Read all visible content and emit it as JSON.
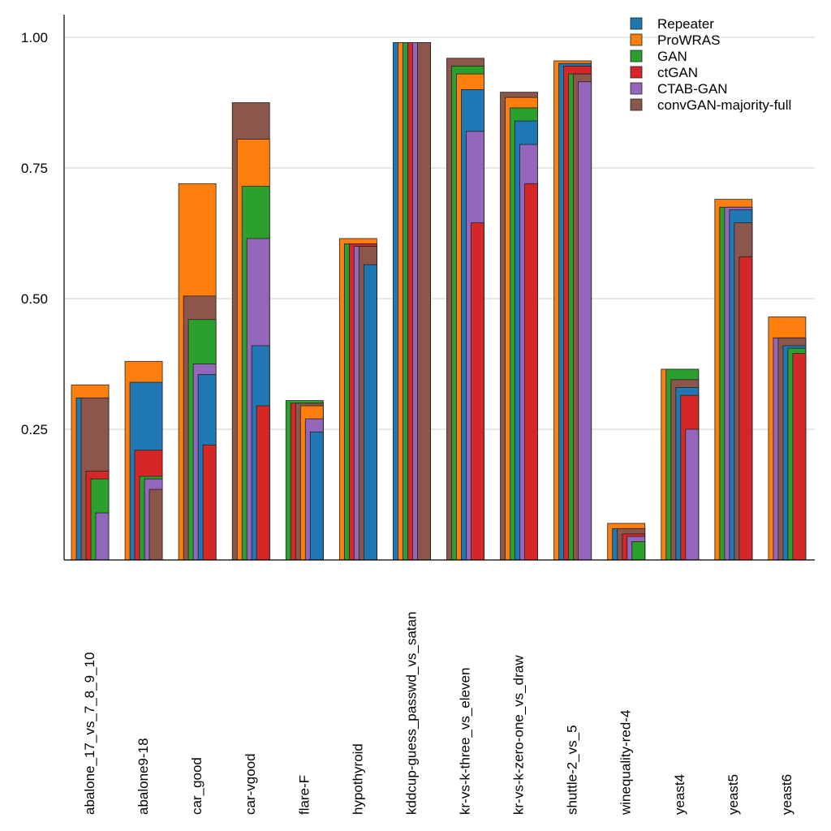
{
  "chart_data": {
    "type": "bar",
    "title": "",
    "xlabel": "",
    "ylabel": "",
    "ylim": [
      0,
      1.0
    ],
    "yticks": [
      "0.25",
      "0.50",
      "0.75",
      "1.00"
    ],
    "grid": true,
    "legend_position": "top-right",
    "categories": [
      "abalone_17_vs_7_8_9_10",
      "abalone9-18",
      "car_good",
      "car-vgood",
      "flare-F",
      "hypothyroid",
      "kddcup-guess_passwd_vs_satan",
      "kr-vs-k-three_vs_eleven",
      "kr-vs-k-zero-one_vs_draw",
      "shuttle-2_vs_5",
      "winequality-red-4",
      "yeast4",
      "yeast5",
      "yeast6"
    ],
    "series": [
      {
        "name": "Repeater",
        "color": "#1f77b4",
        "values": [
          0.31,
          0.34,
          0.355,
          0.41,
          0.245,
          0.565,
          0.99,
          0.9,
          0.84,
          0.95,
          0.06,
          0.33,
          0.67,
          0.41
        ]
      },
      {
        "name": "ProWRAS",
        "color": "#ff7f0e",
        "values": [
          0.335,
          0.38,
          0.72,
          0.805,
          0.295,
          0.615,
          0.99,
          0.93,
          0.885,
          0.955,
          0.07,
          0.365,
          0.69,
          0.465
        ]
      },
      {
        "name": "GAN",
        "color": "#2ca02c",
        "values": [
          0.155,
          0.16,
          0.46,
          0.715,
          0.305,
          0.605,
          0.99,
          0.945,
          0.865,
          0.93,
          0.035,
          0.365,
          0.675,
          0.405
        ]
      },
      {
        "name": "ctGAN",
        "color": "#d62728",
        "values": [
          0.17,
          0.21,
          0.22,
          0.295,
          0.3,
          0.605,
          0.99,
          0.645,
          0.72,
          0.945,
          0.05,
          0.315,
          0.58,
          0.395
        ]
      },
      {
        "name": "CTAB-GAN",
        "color": "#9467bd",
        "values": [
          0.09,
          0.155,
          0.375,
          0.615,
          0.27,
          0.6,
          0.99,
          0.82,
          0.795,
          0.915,
          0.045,
          0.25,
          0.675,
          0.425
        ]
      },
      {
        "name": "convGAN-majority-full",
        "color": "#8c564b",
        "values": [
          0.31,
          0.135,
          0.505,
          0.875,
          0.3,
          0.6,
          0.99,
          0.96,
          0.895,
          0.93,
          0.06,
          0.345,
          0.645,
          0.425
        ]
      }
    ]
  }
}
